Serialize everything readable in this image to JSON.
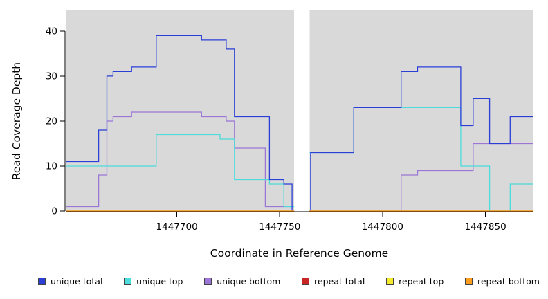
{
  "figure": {
    "background": "#ffffff",
    "panel_background": "#d9d9d9",
    "axis_color": "#000000",
    "gap_band_color": "#ffffff"
  },
  "chart_data": {
    "type": "line",
    "step": true,
    "title": "",
    "xlabel": "Coordinate in Reference Genome",
    "ylabel": "Read Coverage Depth",
    "xlim": [
      1447646,
      1447873
    ],
    "ylim": [
      0,
      44.6
    ],
    "xticks": [
      1447700,
      1447750,
      1447800,
      1447850
    ],
    "yticks": [
      0,
      10,
      20,
      30,
      40
    ],
    "gap_x": [
      1447757,
      1447764.5
    ],
    "grid": false,
    "legend_position": "bottom",
    "series": [
      {
        "name": "unique total",
        "color": "#2b3fd6",
        "segments": [
          [
            [
              1447646,
              11
            ],
            [
              1447662,
              18
            ],
            [
              1447666,
              30
            ],
            [
              1447669,
              31
            ],
            [
              1447678,
              32
            ],
            [
              1447690,
              39
            ],
            [
              1447712,
              38
            ],
            [
              1447724,
              36
            ],
            [
              1447728,
              21
            ],
            [
              1447745,
              7
            ],
            [
              1447752,
              6
            ],
            [
              1447756,
              0
            ],
            [
              1447757,
              0
            ]
          ],
          [
            [
              1447764.5,
              0
            ],
            [
              1447765,
              13
            ],
            [
              1447786,
              23
            ],
            [
              1447809,
              31
            ],
            [
              1447817,
              32
            ],
            [
              1447838,
              19
            ],
            [
              1447844,
              25
            ],
            [
              1447852,
              15
            ],
            [
              1447862,
              21
            ],
            [
              1447873,
              21
            ]
          ]
        ]
      },
      {
        "name": "unique top",
        "color": "#4cdcdc",
        "segments": [
          [
            [
              1447646,
              10
            ],
            [
              1447690,
              17
            ],
            [
              1447721,
              16
            ],
            [
              1447728,
              7
            ],
            [
              1447745,
              6
            ],
            [
              1447752,
              1
            ],
            [
              1447757,
              1
            ]
          ],
          [
            [
              1447764.5,
              13
            ],
            [
              1447786,
              23
            ],
            [
              1447838,
              10
            ],
            [
              1447852,
              0
            ],
            [
              1447862,
              6
            ],
            [
              1447873,
              6
            ]
          ]
        ]
      },
      {
        "name": "unique bottom",
        "color": "#9b76d6",
        "segments": [
          [
            [
              1447646,
              1
            ],
            [
              1447662,
              8
            ],
            [
              1447666,
              20
            ],
            [
              1447669,
              21
            ],
            [
              1447678,
              22
            ],
            [
              1447712,
              21
            ],
            [
              1447724,
              20
            ],
            [
              1447728,
              14
            ],
            [
              1447743,
              1
            ],
            [
              1447757,
              1
            ]
          ],
          [
            [
              1447764.5,
              0
            ],
            [
              1447809,
              8
            ],
            [
              1447817,
              9
            ],
            [
              1447844,
              15
            ],
            [
              1447873,
              15
            ]
          ]
        ]
      },
      {
        "name": "repeat total",
        "color": "#c82525",
        "segments": [
          [
            [
              1447646,
              0
            ],
            [
              1447757,
              0
            ]
          ],
          [
            [
              1447764.5,
              0
            ],
            [
              1447873,
              0
            ]
          ]
        ]
      },
      {
        "name": "repeat top",
        "color": "#f4ec2a",
        "segments": [
          [
            [
              1447646,
              0
            ],
            [
              1447757,
              0
            ]
          ],
          [
            [
              1447764.5,
              0
            ],
            [
              1447873,
              0
            ]
          ]
        ]
      },
      {
        "name": "repeat bottom",
        "color": "#ff9d1e",
        "segments": [
          [
            [
              1447646,
              0
            ],
            [
              1447757,
              0
            ]
          ],
          [
            [
              1447764.5,
              0
            ],
            [
              1447873,
              0
            ]
          ]
        ]
      }
    ]
  }
}
